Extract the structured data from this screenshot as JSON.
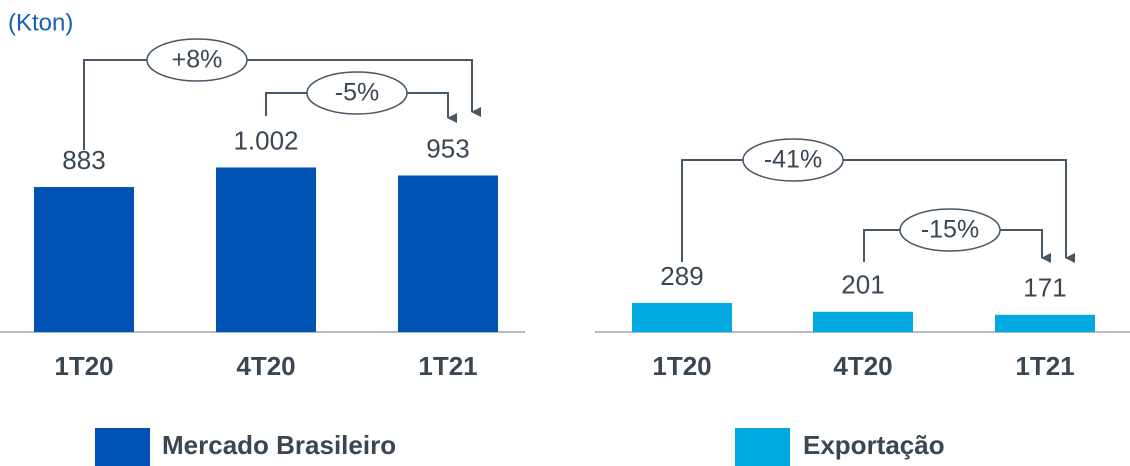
{
  "chart_data": [
    {
      "type": "bar",
      "unit": "(Kton)",
      "categories": [
        "1T20",
        "4T20",
        "1T21"
      ],
      "values": [
        883,
        1002,
        953
      ],
      "value_labels": [
        "883",
        "1.002",
        "953"
      ],
      "color": "#0052b4",
      "ylim": [
        0,
        1900
      ],
      "legend": "Mercado Brasileiro",
      "annotations": [
        "+8%",
        "-5%"
      ]
    },
    {
      "type": "bar",
      "categories": [
        "1T20",
        "4T20",
        "1T21"
      ],
      "values": [
        289,
        201,
        171
      ],
      "color": "#00a9e0",
      "ylim": [
        0,
        3100
      ],
      "legend": "Exportação",
      "annotations": [
        "-41%",
        "-15%"
      ]
    }
  ]
}
